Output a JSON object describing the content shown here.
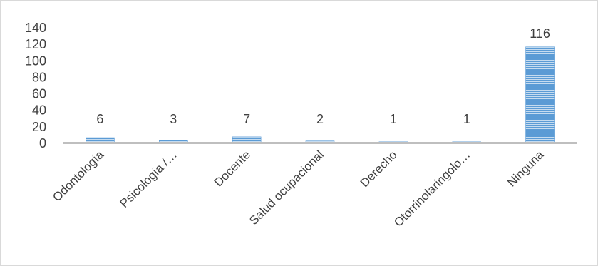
{
  "chart_data": {
    "type": "bar",
    "categories": [
      "Odontología",
      "Psicología /…",
      "Docente",
      "Salud ocupacional",
      "Derecho",
      "Otorrinolaringolo…",
      "Ninguna"
    ],
    "values": [
      6,
      3,
      7,
      2,
      1,
      1,
      116
    ],
    "data_labels": [
      "6",
      "3",
      "7",
      "2",
      "1",
      "1",
      "116"
    ],
    "y_ticks": [
      0,
      20,
      40,
      60,
      80,
      100,
      120,
      140
    ],
    "ylim": [
      0,
      140
    ],
    "grid": false,
    "legend": "none",
    "bar_color": "#5b9bd5",
    "axis_color": "#bfbfbf"
  }
}
